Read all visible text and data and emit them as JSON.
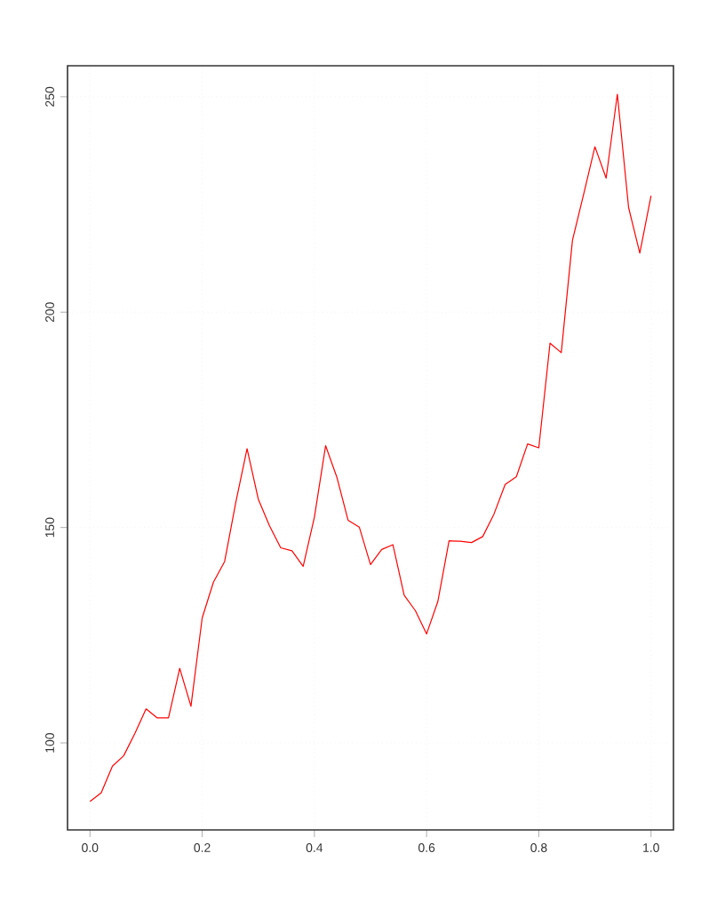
{
  "chart_data": {
    "type": "line",
    "x": [
      0,
      0.02,
      0.04,
      0.06,
      0.08,
      0.1,
      0.12,
      0.14,
      0.16,
      0.18,
      0.2,
      0.22,
      0.24,
      0.26,
      0.28,
      0.3,
      0.32,
      0.34,
      0.36,
      0.38,
      0.4,
      0.42,
      0.44,
      0.46,
      0.48,
      0.5,
      0.52,
      0.54,
      0.56,
      0.58,
      0.6,
      0.62,
      0.64,
      0.66,
      0.68,
      0.7,
      0.72,
      0.74,
      0.76,
      0.78,
      0.8,
      0.82,
      0.84,
      0.86,
      0.88,
      0.9,
      0.92,
      0.94,
      0.96,
      0.98,
      1
    ],
    "series": [
      {
        "color": "#ff0000",
        "values": [
          86.4,
          88.4,
          94.6,
          97.0,
          102.2,
          107.9,
          105.8,
          105.8,
          117.3,
          108.5,
          129.0,
          137.3,
          142.1,
          155.9,
          168.3,
          156.6,
          150.4,
          145.3,
          144.6,
          141.0,
          152.4,
          169.0,
          161.7,
          151.7,
          150.1,
          141.4,
          144.9,
          146.0,
          134.3,
          130.7,
          125.3,
          132.8,
          146.9,
          146.8,
          146.5,
          147.9,
          153.1,
          160.0,
          161.8,
          169.4,
          168.5,
          192.8,
          190.6,
          216.7,
          227.4,
          238.4,
          231.1,
          250.6,
          224.3,
          213.7,
          227.0
        ]
      }
    ],
    "xlim": [
      -0.04,
      1.04
    ],
    "ylim": [
      79.8,
      257.2
    ],
    "xticks": [
      {
        "value": 0,
        "label": "0.0"
      },
      0.2,
      0.4,
      0.6,
      0.8,
      {
        "value": 1,
        "label": "1.0"
      }
    ],
    "yticks": [
      100,
      150,
      200,
      250
    ],
    "grid": true,
    "marker": "none",
    "line_style": "solid"
  }
}
